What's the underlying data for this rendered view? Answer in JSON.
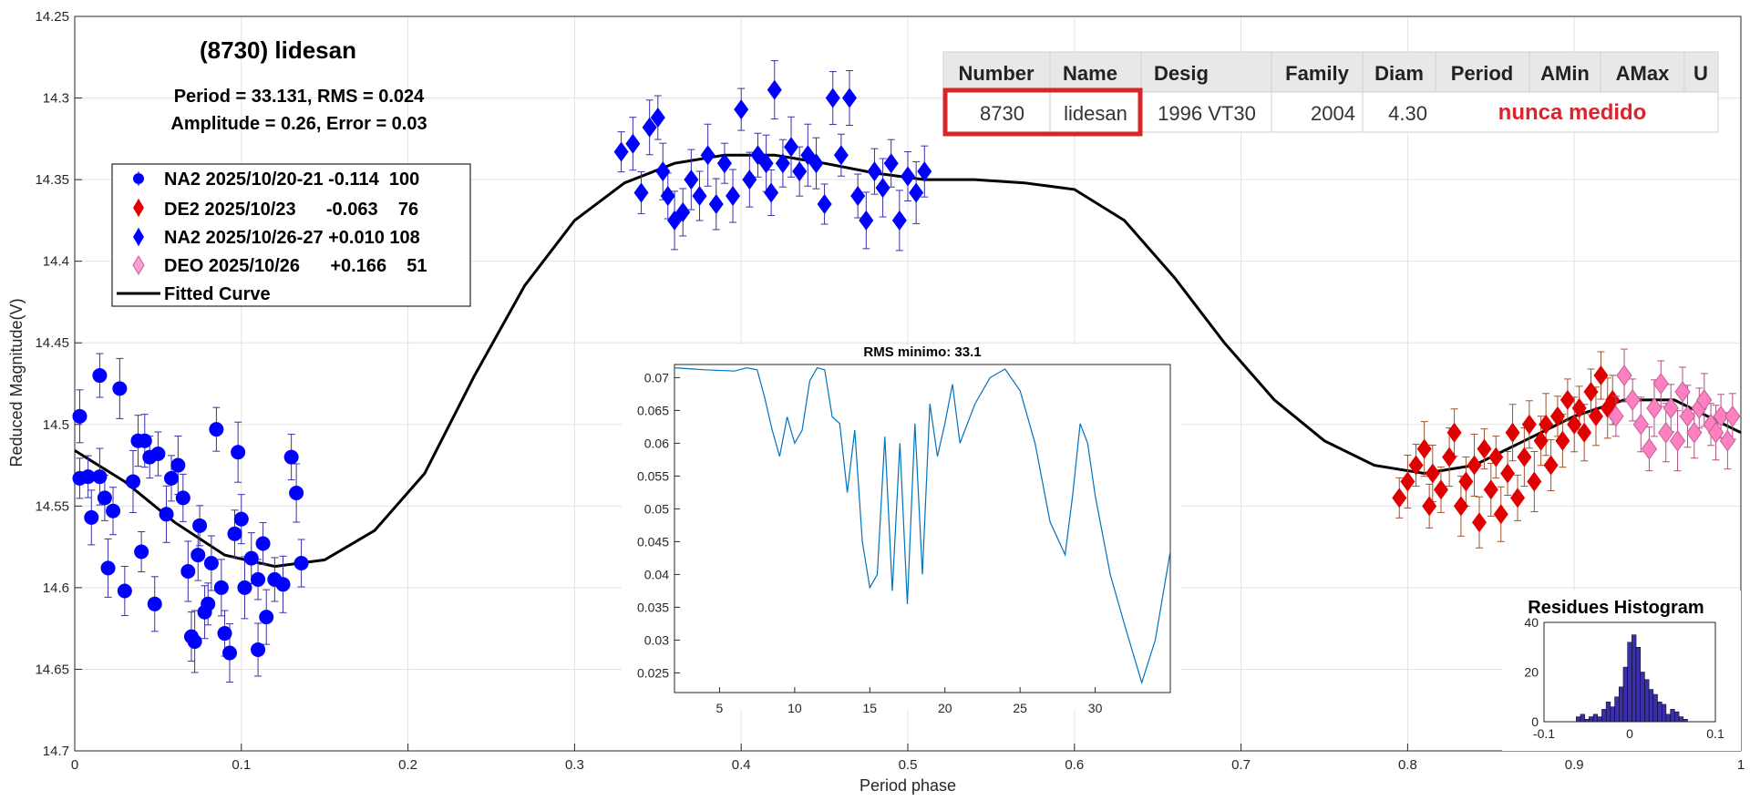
{
  "chart_data": [
    {
      "type": "scatter",
      "title": "(8730) lidesan",
      "subtitle_lines": [
        "Period =  33.131, RMS = 0.024",
        "Amplitude = 0.26, Error = 0.03"
      ],
      "xlabel": "Period phase",
      "ylabel": "Reduced Magnitude(V)",
      "xlim": [
        0,
        1
      ],
      "ylim": [
        14.25,
        14.7
      ],
      "y_reversed": true,
      "grid": true,
      "legend_position": "top-left",
      "x_ticks": [
        "0",
        "0.1",
        "0.2",
        "0.3",
        "0.4",
        "0.5",
        "0.6",
        "0.7",
        "0.8",
        "0.9",
        "1"
      ],
      "y_ticks": [
        "14.25",
        "14.3",
        "14.35",
        "14.4",
        "14.45",
        "14.5",
        "14.55",
        "14.6",
        "14.65",
        "14.7"
      ],
      "series": [
        {
          "name": "NA2 2025/10/20-21 -0.114  100",
          "marker": "circle",
          "color": "#0000ff",
          "points": [
            [
              0.003,
              14.533
            ],
            [
              0.003,
              14.495
            ],
            [
              0.008,
              14.532
            ],
            [
              0.01,
              14.557
            ],
            [
              0.015,
              14.47
            ],
            [
              0.015,
              14.532
            ],
            [
              0.018,
              14.545
            ],
            [
              0.02,
              14.588
            ],
            [
              0.023,
              14.553
            ],
            [
              0.027,
              14.478
            ],
            [
              0.03,
              14.602
            ],
            [
              0.035,
              14.535
            ],
            [
              0.038,
              14.51
            ],
            [
              0.04,
              14.578
            ],
            [
              0.042,
              14.51
            ],
            [
              0.045,
              14.52
            ],
            [
              0.048,
              14.61
            ],
            [
              0.05,
              14.518
            ],
            [
              0.055,
              14.555
            ],
            [
              0.058,
              14.533
            ],
            [
              0.062,
              14.525
            ],
            [
              0.065,
              14.545
            ],
            [
              0.068,
              14.59
            ],
            [
              0.07,
              14.63
            ],
            [
              0.072,
              14.633
            ],
            [
              0.074,
              14.58
            ],
            [
              0.075,
              14.562
            ],
            [
              0.078,
              14.615
            ],
            [
              0.08,
              14.61
            ],
            [
              0.082,
              14.585
            ],
            [
              0.085,
              14.503
            ],
            [
              0.088,
              14.6
            ],
            [
              0.09,
              14.628
            ],
            [
              0.093,
              14.64
            ],
            [
              0.096,
              14.567
            ],
            [
              0.098,
              14.517
            ],
            [
              0.1,
              14.558
            ],
            [
              0.102,
              14.6
            ],
            [
              0.106,
              14.582
            ],
            [
              0.11,
              14.595
            ],
            [
              0.11,
              14.638
            ],
            [
              0.113,
              14.573
            ],
            [
              0.115,
              14.618
            ],
            [
              0.12,
              14.595
            ],
            [
              0.125,
              14.598
            ],
            [
              0.13,
              14.52
            ],
            [
              0.133,
              14.542
            ],
            [
              0.136,
              14.585
            ]
          ]
        },
        {
          "name": "DE2 2025/10/23      -0.063    76",
          "marker": "diamond",
          "color": "#e00000",
          "points": [
            [
              0.795,
              14.545
            ],
            [
              0.8,
              14.535
            ],
            [
              0.805,
              14.525
            ],
            [
              0.81,
              14.515
            ],
            [
              0.813,
              14.55
            ],
            [
              0.815,
              14.53
            ],
            [
              0.82,
              14.54
            ],
            [
              0.825,
              14.52
            ],
            [
              0.828,
              14.505
            ],
            [
              0.832,
              14.55
            ],
            [
              0.835,
              14.535
            ],
            [
              0.84,
              14.525
            ],
            [
              0.843,
              14.56
            ],
            [
              0.846,
              14.515
            ],
            [
              0.85,
              14.54
            ],
            [
              0.853,
              14.52
            ],
            [
              0.856,
              14.555
            ],
            [
              0.86,
              14.53
            ],
            [
              0.863,
              14.505
            ],
            [
              0.866,
              14.545
            ],
            [
              0.87,
              14.52
            ],
            [
              0.873,
              14.5
            ],
            [
              0.876,
              14.535
            ],
            [
              0.88,
              14.51
            ],
            [
              0.883,
              14.5
            ],
            [
              0.886,
              14.525
            ],
            [
              0.89,
              14.495
            ],
            [
              0.893,
              14.51
            ],
            [
              0.896,
              14.485
            ],
            [
              0.9,
              14.5
            ],
            [
              0.903,
              14.49
            ],
            [
              0.906,
              14.505
            ],
            [
              0.91,
              14.48
            ],
            [
              0.913,
              14.495
            ],
            [
              0.916,
              14.47
            ],
            [
              0.92,
              14.49
            ],
            [
              0.923,
              14.485
            ]
          ]
        },
        {
          "name": "NA2 2025/10/26-27 +0.010 108",
          "marker": "diamond",
          "color": "#0000ff",
          "points": [
            [
              0.328,
              14.333
            ],
            [
              0.335,
              14.328
            ],
            [
              0.34,
              14.358
            ],
            [
              0.345,
              14.318
            ],
            [
              0.35,
              14.312
            ],
            [
              0.353,
              14.345
            ],
            [
              0.356,
              14.36
            ],
            [
              0.36,
              14.375
            ],
            [
              0.365,
              14.37
            ],
            [
              0.37,
              14.35
            ],
            [
              0.375,
              14.36
            ],
            [
              0.38,
              14.335
            ],
            [
              0.385,
              14.365
            ],
            [
              0.39,
              14.34
            ],
            [
              0.395,
              14.36
            ],
            [
              0.4,
              14.307
            ],
            [
              0.405,
              14.35
            ],
            [
              0.41,
              14.335
            ],
            [
              0.415,
              14.34
            ],
            [
              0.418,
              14.358
            ],
            [
              0.42,
              14.295
            ],
            [
              0.425,
              14.34
            ],
            [
              0.43,
              14.33
            ],
            [
              0.435,
              14.345
            ],
            [
              0.44,
              14.335
            ],
            [
              0.445,
              14.34
            ],
            [
              0.45,
              14.365
            ],
            [
              0.455,
              14.3
            ],
            [
              0.46,
              14.335
            ],
            [
              0.465,
              14.3
            ],
            [
              0.47,
              14.36
            ],
            [
              0.475,
              14.375
            ],
            [
              0.48,
              14.345
            ],
            [
              0.485,
              14.355
            ],
            [
              0.49,
              14.34
            ],
            [
              0.495,
              14.375
            ],
            [
              0.5,
              14.348
            ],
            [
              0.505,
              14.358
            ],
            [
              0.51,
              14.345
            ]
          ]
        },
        {
          "name": "DEO 2025/10/26      +0.166    51",
          "marker": "diamond",
          "color": "#ff80c0",
          "points": [
            [
              0.925,
              14.495
            ],
            [
              0.93,
              14.47
            ],
            [
              0.935,
              14.485
            ],
            [
              0.94,
              14.5
            ],
            [
              0.945,
              14.515
            ],
            [
              0.948,
              14.49
            ],
            [
              0.952,
              14.475
            ],
            [
              0.955,
              14.505
            ],
            [
              0.958,
              14.49
            ],
            [
              0.962,
              14.51
            ],
            [
              0.965,
              14.48
            ],
            [
              0.968,
              14.495
            ],
            [
              0.972,
              14.505
            ],
            [
              0.975,
              14.49
            ],
            [
              0.978,
              14.485
            ],
            [
              0.982,
              14.5
            ],
            [
              0.985,
              14.505
            ],
            [
              0.988,
              14.495
            ],
            [
              0.992,
              14.51
            ],
            [
              0.995,
              14.495
            ]
          ]
        },
        {
          "name": "Fitted Curve",
          "marker": "line",
          "color": "#000000",
          "points": [
            [
              0.0,
              14.516
            ],
            [
              0.03,
              14.535
            ],
            [
              0.06,
              14.56
            ],
            [
              0.09,
              14.58
            ],
            [
              0.12,
              14.587
            ],
            [
              0.15,
              14.583
            ],
            [
              0.18,
              14.565
            ],
            [
              0.21,
              14.53
            ],
            [
              0.24,
              14.47
            ],
            [
              0.27,
              14.415
            ],
            [
              0.3,
              14.375
            ],
            [
              0.33,
              14.352
            ],
            [
              0.36,
              14.34
            ],
            [
              0.39,
              14.335
            ],
            [
              0.42,
              14.335
            ],
            [
              0.45,
              14.34
            ],
            [
              0.48,
              14.346
            ],
            [
              0.51,
              14.35
            ],
            [
              0.54,
              14.35
            ],
            [
              0.57,
              14.352
            ],
            [
              0.6,
              14.356
            ],
            [
              0.63,
              14.375
            ],
            [
              0.66,
              14.41
            ],
            [
              0.69,
              14.45
            ],
            [
              0.72,
              14.485
            ],
            [
              0.75,
              14.51
            ],
            [
              0.78,
              14.525
            ],
            [
              0.81,
              14.53
            ],
            [
              0.84,
              14.525
            ],
            [
              0.87,
              14.51
            ],
            [
              0.9,
              14.495
            ],
            [
              0.93,
              14.485
            ],
            [
              0.96,
              14.485
            ],
            [
              1.0,
              14.505
            ]
          ]
        }
      ]
    },
    {
      "type": "line",
      "title": "RMS minimo: 33.1",
      "xlim": [
        2,
        35
      ],
      "ylim": [
        0.022,
        0.072
      ],
      "x_ticks": [
        "5",
        "10",
        "15",
        "20",
        "25",
        "30"
      ],
      "y_ticks": [
        "0.025",
        "0.03",
        "0.035",
        "0.04",
        "0.045",
        "0.05",
        "0.055",
        "0.06",
        "0.065",
        "0.07"
      ],
      "color": "#0072bd",
      "points": [
        [
          2.0,
          0.0715
        ],
        [
          4.0,
          0.0712
        ],
        [
          6.0,
          0.071
        ],
        [
          6.8,
          0.0715
        ],
        [
          7.5,
          0.0712
        ],
        [
          8.0,
          0.067
        ],
        [
          8.5,
          0.062
        ],
        [
          9.0,
          0.058
        ],
        [
          9.5,
          0.064
        ],
        [
          10.0,
          0.06
        ],
        [
          10.5,
          0.062
        ],
        [
          11.0,
          0.0695
        ],
        [
          11.5,
          0.0715
        ],
        [
          12.0,
          0.0712
        ],
        [
          12.5,
          0.064
        ],
        [
          13.0,
          0.063
        ],
        [
          13.5,
          0.0525
        ],
        [
          14.0,
          0.062
        ],
        [
          14.5,
          0.045
        ],
        [
          15.0,
          0.038
        ],
        [
          15.5,
          0.04
        ],
        [
          16.0,
          0.061
        ],
        [
          16.5,
          0.0375
        ],
        [
          17.0,
          0.06
        ],
        [
          17.5,
          0.0355
        ],
        [
          18.0,
          0.063
        ],
        [
          18.5,
          0.04
        ],
        [
          19.0,
          0.066
        ],
        [
          19.5,
          0.058
        ],
        [
          20.0,
          0.063
        ],
        [
          20.5,
          0.069
        ],
        [
          21.0,
          0.06
        ],
        [
          22.0,
          0.066
        ],
        [
          23.0,
          0.07
        ],
        [
          24.0,
          0.0713
        ],
        [
          25.0,
          0.068
        ],
        [
          26.0,
          0.06
        ],
        [
          27.0,
          0.048
        ],
        [
          28.0,
          0.043
        ],
        [
          28.5,
          0.052
        ],
        [
          29.0,
          0.063
        ],
        [
          29.5,
          0.06
        ],
        [
          30.0,
          0.052
        ],
        [
          31.0,
          0.04
        ],
        [
          32.0,
          0.032
        ],
        [
          33.1,
          0.0235
        ],
        [
          34.0,
          0.03
        ],
        [
          35.0,
          0.0435
        ]
      ]
    },
    {
      "type": "bar",
      "title": "Residues Histogram",
      "xlim": [
        -0.1,
        0.1
      ],
      "ylim": [
        0,
        40
      ],
      "x_ticks": [
        "-0.1",
        "0",
        "0.1"
      ],
      "y_ticks": [
        "0",
        "20",
        "40"
      ],
      "color": "#3a2fa8",
      "bin_centers": [
        -0.06,
        -0.055,
        -0.05,
        -0.045,
        -0.04,
        -0.035,
        -0.03,
        -0.025,
        -0.02,
        -0.015,
        -0.01,
        -0.005,
        0.0,
        0.005,
        0.01,
        0.015,
        0.02,
        0.025,
        0.03,
        0.035,
        0.04,
        0.045,
        0.05,
        0.055,
        0.06,
        0.065
      ],
      "values": [
        2,
        3,
        1,
        2,
        3,
        2,
        5,
        8,
        6,
        10,
        14,
        22,
        32,
        35,
        30,
        20,
        17,
        13,
        11,
        8,
        7,
        3,
        5,
        4,
        2,
        1
      ]
    }
  ],
  "legend": [
    {
      "label": "NA2 2025/10/20-21 -0.114  100",
      "marker": "circle",
      "color": "#0000ff"
    },
    {
      "label": "DE2 2025/10/23      -0.063    76",
      "marker": "diamond",
      "color": "#e00000"
    },
    {
      "label": "NA2 2025/10/26-27 +0.010 108",
      "marker": "diamond",
      "color": "#0000ff"
    },
    {
      "label": "DEO 2025/10/26      +0.166    51",
      "marker": "diamond",
      "color": "#ff80c0"
    },
    {
      "label": "Fitted Curve",
      "marker": "line",
      "color": "#000000"
    }
  ],
  "info_table": {
    "headers": [
      "Number",
      "Name",
      "Desig",
      "Family",
      "Diam",
      "Period",
      "AMin",
      "AMax",
      "U"
    ],
    "row": [
      "8730",
      "lidesan",
      "1996 VT30",
      "2004",
      "4.30"
    ],
    "note": "nunca medido",
    "highlight_color": "#d8252b"
  }
}
